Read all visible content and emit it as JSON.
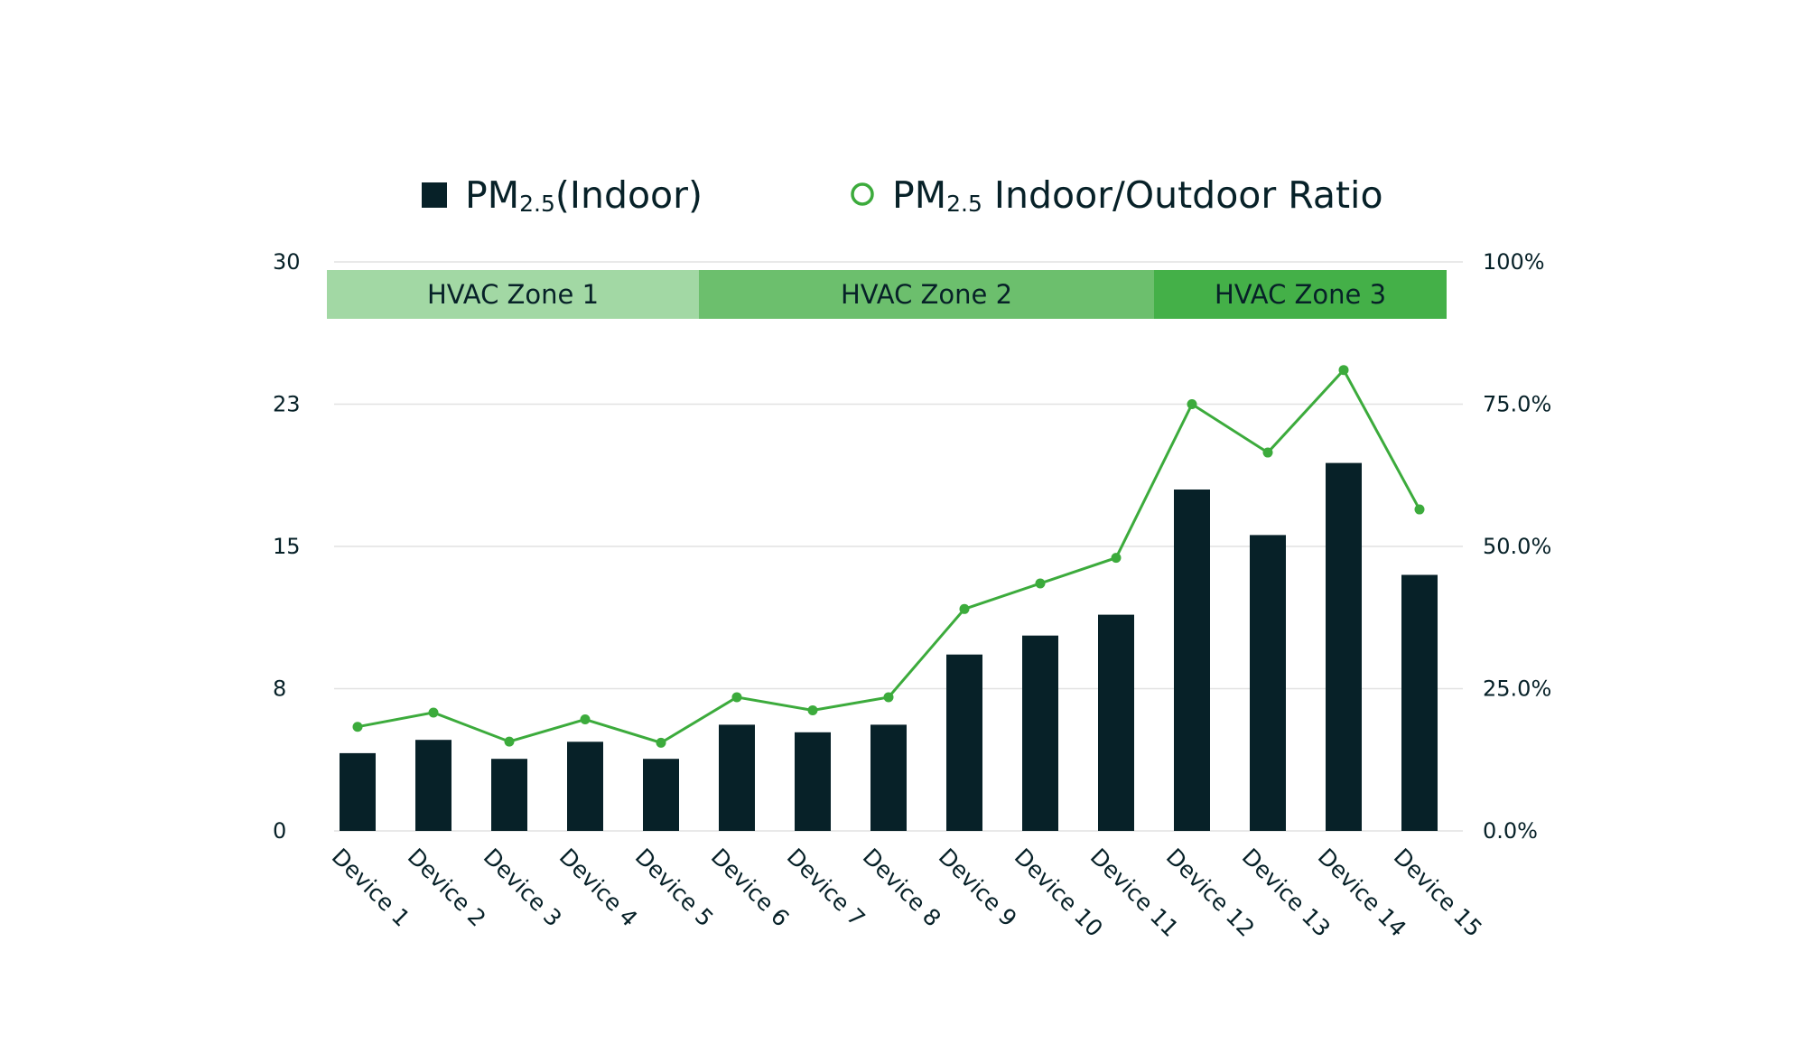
{
  "chart_data": {
    "type": "bar+line",
    "colors": {
      "bar": "#072128",
      "line": "#3cab3c",
      "zone_1": "#a2d8a4",
      "zone_2": "#6cbf6d",
      "zone_3": "#44b048",
      "grid": "#e2e2e2",
      "text": "#072128"
    },
    "legend": {
      "position": "top-center",
      "items": [
        {
          "prefix": "PM",
          "sub": "2.5",
          "suffix": "(Indoor)",
          "marker": "filled-square"
        },
        {
          "prefix": "PM",
          "sub": "2.5",
          "suffix": " Indoor/Outdoor Ratio",
          "marker": "hollow-circle"
        }
      ]
    },
    "categories": [
      "Device 1",
      "Device 2",
      "Device 3",
      "Device 4",
      "Device 5",
      "Device 6",
      "Device 7",
      "Device 8",
      "Device 9",
      "Device 10",
      "Device 11",
      "Device 12",
      "Device 13",
      "Device 14",
      "Device 15"
    ],
    "y_left": {
      "ticks": [
        "0",
        "8",
        "15",
        "23",
        "30"
      ],
      "range": [
        0,
        30
      ]
    },
    "y_right": {
      "ticks": [
        "0.0%",
        "25.0%",
        "50.0%",
        "75.0%",
        "100%"
      ],
      "range": [
        0,
        100
      ]
    },
    "grid": true,
    "series": [
      {
        "type": "bar",
        "axis": "left",
        "values": [
          4.1,
          4.8,
          3.8,
          4.7,
          3.8,
          5.6,
          5.2,
          5.6,
          9.3,
          10.3,
          11.4,
          18.0,
          15.6,
          19.4,
          13.5
        ]
      },
      {
        "type": "line",
        "axis": "right",
        "values": [
          18.3,
          20.8,
          15.7,
          19.6,
          15.5,
          23.5,
          21.2,
          23.5,
          39.0,
          43.5,
          48.0,
          75.0,
          66.5,
          81.0,
          56.5
        ]
      }
    ],
    "zones": [
      {
        "label": "HVAC Zone 1",
        "start": 0,
        "end": 4
      },
      {
        "label": "HVAC Zone 2",
        "start": 5,
        "end": 10
      },
      {
        "label": "HVAC Zone 3",
        "start": 11,
        "end": 14
      }
    ]
  }
}
